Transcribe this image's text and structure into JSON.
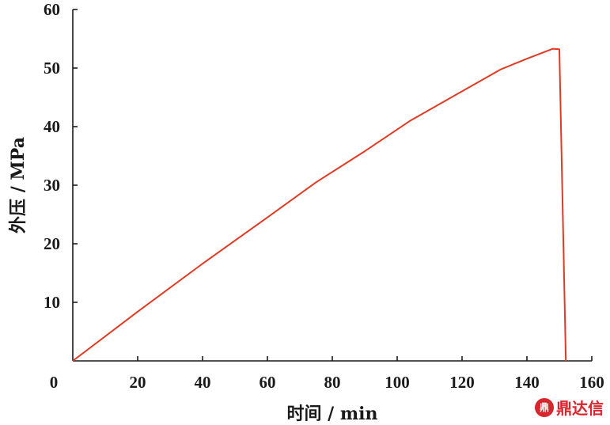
{
  "chart_data": {
    "type": "line",
    "title": "",
    "xlabel": "时间 / min",
    "ylabel": "外压 / MPa",
    "xlim": [
      0,
      160
    ],
    "ylim": [
      0,
      60
    ],
    "xticks": [
      0,
      20,
      40,
      60,
      80,
      100,
      120,
      140,
      160
    ],
    "yticks": [
      10,
      20,
      30,
      40,
      50,
      60
    ],
    "grid": false,
    "legend": "none",
    "series": [
      {
        "color": "#e03a24",
        "x": [
          0,
          20,
          40,
          60,
          75,
          90,
          104,
          118,
          132,
          140,
          148,
          150,
          152
        ],
        "y": [
          0,
          8.4,
          16.6,
          24.5,
          30.5,
          35.8,
          41.0,
          45.4,
          49.8,
          51.6,
          53.3,
          53.2,
          0
        ]
      }
    ]
  },
  "watermark": {
    "logo": "鼎",
    "text": "鼎达信"
  }
}
